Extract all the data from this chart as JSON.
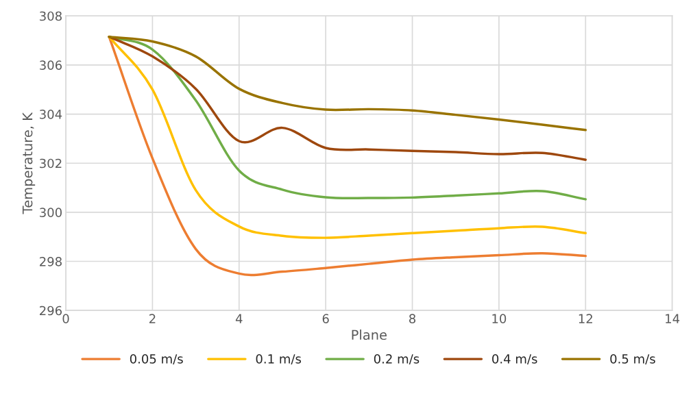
{
  "chart_data": {
    "type": "line",
    "xlabel": "Plane",
    "ylabel": "Temperature, K",
    "x": [
      1,
      2,
      3,
      4,
      5,
      6,
      7,
      8,
      9,
      10,
      11,
      12
    ],
    "series": [
      {
        "name": "0.05 m/s",
        "color": "#ed7d31",
        "values": [
          307.15,
          302.2,
          298.5,
          297.5,
          297.58,
          297.73,
          297.9,
          298.07,
          298.17,
          298.25,
          298.33,
          298.22
        ]
      },
      {
        "name": "0.1 m/s",
        "color": "#ffc000",
        "values": [
          307.15,
          305.0,
          300.9,
          299.42,
          299.04,
          298.96,
          299.05,
          299.15,
          299.25,
          299.35,
          299.41,
          299.15
        ]
      },
      {
        "name": "0.2 m/s",
        "color": "#70ad47",
        "values": [
          307.15,
          306.63,
          304.56,
          301.7,
          300.92,
          300.61,
          300.58,
          300.6,
          300.68,
          300.77,
          300.86,
          300.53
        ]
      },
      {
        "name": "0.4 m/s",
        "color": "#9e480e",
        "values": [
          307.15,
          306.35,
          305.03,
          302.9,
          303.44,
          302.62,
          302.56,
          302.5,
          302.45,
          302.37,
          302.42,
          302.14
        ]
      },
      {
        "name": "0.5 m/s",
        "color": "#997300",
        "values": [
          307.15,
          306.96,
          306.35,
          305.03,
          304.45,
          304.18,
          304.2,
          304.15,
          303.97,
          303.78,
          303.57,
          303.35
        ]
      }
    ],
    "xlim": [
      0,
      14
    ],
    "xticks": [
      0,
      2,
      4,
      6,
      8,
      10,
      12,
      14
    ],
    "ylim": [
      296,
      308
    ],
    "yticks": [
      296,
      298,
      300,
      302,
      304,
      306,
      308
    ],
    "grid": true,
    "legend": "bottom",
    "marker": "none",
    "line_style": "solid"
  }
}
